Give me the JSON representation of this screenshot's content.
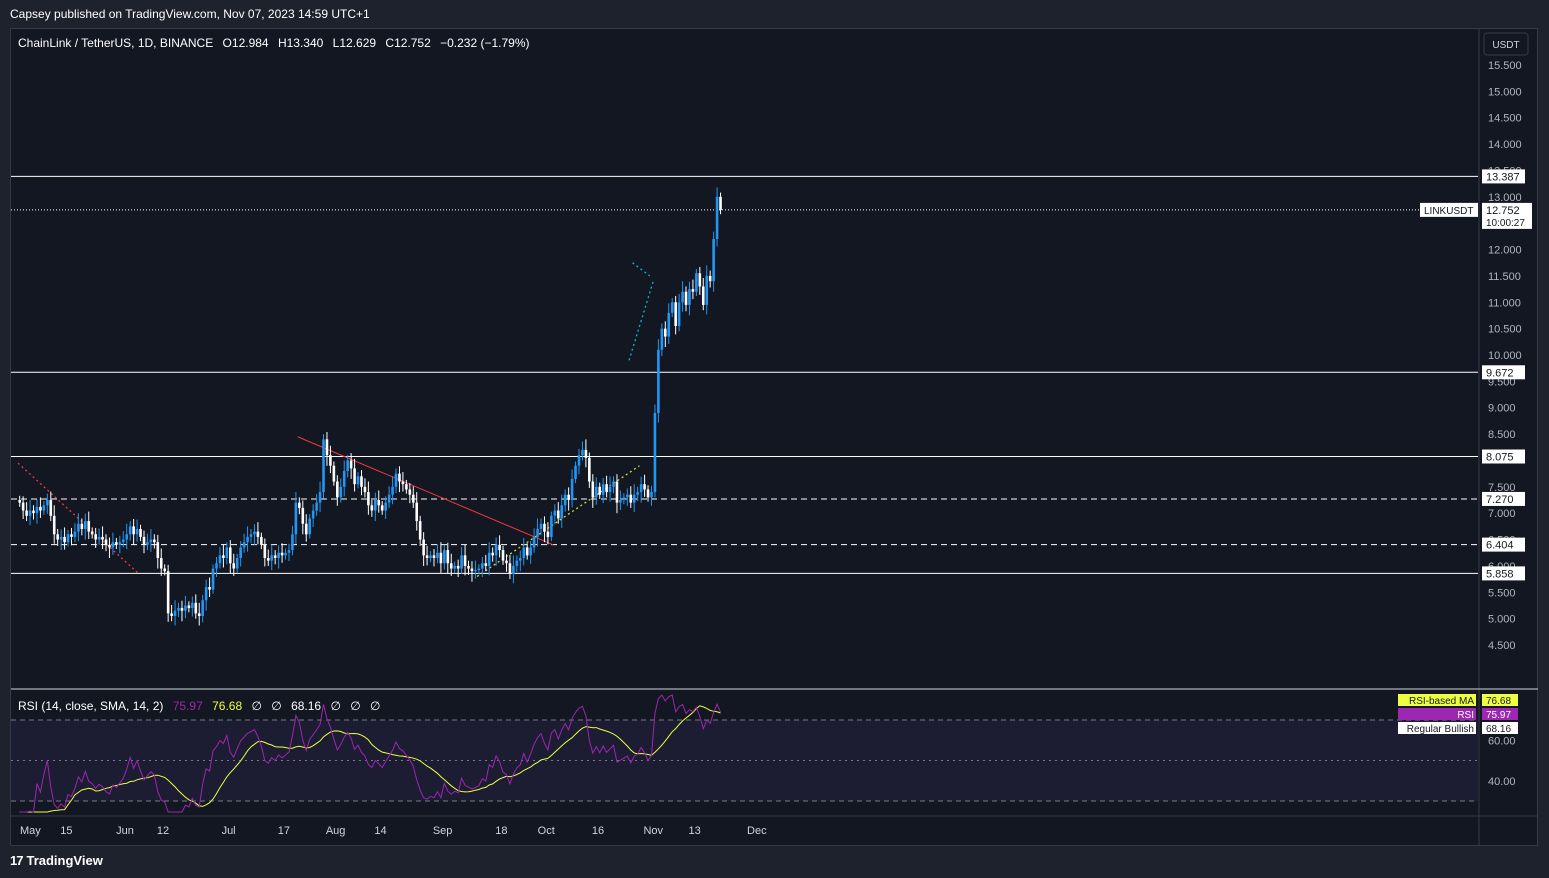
{
  "header": {
    "publisher": "Capsey published on TradingView.com, Nov 07, 2023 14:59 UTC+1"
  },
  "footer": {
    "brand": "TradingView",
    "logo_icon": "tradingview-logo-icon"
  },
  "legend": {
    "symbol": "ChainLink / TetherUS, 1D, BINANCE",
    "open_label": "O",
    "open": "12.984",
    "high_label": "H",
    "high": "13.340",
    "low_label": "L",
    "low": "12.629",
    "close_label": "C",
    "close": "12.752",
    "change": "−0.232 (−1.79%)"
  },
  "rsi_legend": {
    "title": "RSI (14, close, SMA, 14, 2)",
    "rsi_value": "75.97",
    "ma_value": "76.68",
    "null1": "∅",
    "null2": "∅",
    "bullish_value": "68.16",
    "null3": "∅",
    "null4": "∅",
    "null5": "∅"
  },
  "price_scale": {
    "currency": "USDT",
    "ticks": [
      "15.500",
      "15.000",
      "14.500",
      "14.000",
      "13.500",
      "13.000",
      "12.000",
      "11.500",
      "11.000",
      "10.500",
      "10.000",
      "9.500",
      "9.000",
      "8.500",
      "7.500",
      "7.000",
      "6.500",
      "6.000",
      "5.500",
      "5.000",
      "4.500"
    ],
    "current_price_symbol": "LINKUSDT",
    "current_price": "12.752",
    "countdown": "10:00:27"
  },
  "rsi_scale": {
    "ticks": [
      "60.00",
      "40.00"
    ],
    "labels": [
      {
        "name": "RSI-based MA",
        "value": "76.68",
        "color": "#eeff41"
      },
      {
        "name": "RSI",
        "value": "75.97",
        "color": "#9c27b0"
      },
      {
        "name": "Regular Bullish",
        "value": "68.16",
        "color": "#ffffff"
      }
    ]
  },
  "time_axis": {
    "ticks": [
      "May",
      "15",
      "Jun",
      "12",
      "Jul",
      "17",
      "Aug",
      "14",
      "Sep",
      "18",
      "Oct",
      "16",
      "Nov",
      "13",
      "Dec"
    ]
  },
  "colors": {
    "up": "#2196f3",
    "down": "#ffffff",
    "rsi": "#9c27b0",
    "rsi_ma": "#eeff41",
    "trend_red": "#f23645",
    "trend_yellow": "#cddc39",
    "trend_cyan": "#00bcd4"
  },
  "chart_data": {
    "type": "candlestick",
    "symbol": "LINKUSDT",
    "interval": "1D",
    "ylim": [
      4.2,
      15.9
    ],
    "x_range": [
      "2023-05-01",
      "2023-12-07"
    ],
    "horizontal_levels": [
      {
        "value": 13.387,
        "style": "solid"
      },
      {
        "value": 9.672,
        "style": "solid"
      },
      {
        "value": 8.075,
        "style": "solid"
      },
      {
        "value": 7.27,
        "style": "dashed"
      },
      {
        "value": 6.404,
        "style": "dashed"
      },
      {
        "value": 5.858,
        "style": "solid"
      }
    ],
    "trend_lines": [
      {
        "color": "red",
        "style": "solid",
        "from": [
          "2023-07-21",
          8.45
        ],
        "to": [
          "2023-10-03",
          6.4
        ]
      },
      {
        "color": "red",
        "style": "dotted",
        "from": [
          "2023-05-01",
          7.95
        ],
        "to": [
          "2023-06-05",
          5.85
        ]
      },
      {
        "color": "yellow",
        "style": "dotted",
        "from": [
          "2023-09-11",
          5.8
        ],
        "to": [
          "2023-10-28",
          7.9
        ]
      },
      {
        "color": "cyan",
        "style": "dotted",
        "from": [
          "2023-10-25",
          9.9
        ],
        "to": [
          "2023-11-01",
          11.4
        ]
      },
      {
        "color": "cyan",
        "style": "dotted",
        "from": [
          "2023-10-26",
          11.75
        ],
        "to": [
          "2023-10-31",
          11.5
        ]
      }
    ],
    "closes": [
      7.2,
      7.05,
      6.95,
      7.05,
      7.0,
      7.12,
      7.05,
      7.15,
      7.25,
      6.95,
      6.6,
      6.5,
      6.55,
      6.45,
      6.6,
      6.55,
      6.65,
      6.8,
      6.7,
      6.85,
      6.65,
      6.6,
      6.5,
      6.55,
      6.5,
      6.4,
      6.35,
      6.45,
      6.4,
      6.45,
      6.5,
      6.6,
      6.75,
      6.6,
      6.7,
      6.55,
      6.4,
      6.45,
      6.5,
      6.45,
      6.15,
      5.95,
      5.9,
      5.1,
      5.05,
      5.15,
      5.2,
      5.15,
      5.25,
      5.2,
      5.3,
      5.1,
      5.05,
      5.35,
      5.6,
      5.55,
      5.95,
      6.05,
      6.2,
      6.15,
      6.35,
      6.05,
      5.95,
      6.15,
      6.35,
      6.45,
      6.55,
      6.6,
      6.65,
      6.55,
      6.4,
      6.15,
      6.1,
      6.2,
      6.15,
      6.25,
      6.2,
      6.25,
      6.3,
      6.6,
      7.2,
      7.1,
      6.8,
      6.6,
      6.9,
      7.05,
      7.2,
      7.4,
      8.4,
      8.1,
      7.9,
      7.6,
      7.3,
      7.5,
      7.8,
      8.0,
      7.85,
      7.55,
      7.7,
      7.5,
      7.4,
      7.15,
      7.05,
      7.25,
      7.15,
      7.05,
      7.2,
      7.35,
      7.5,
      7.75,
      7.6,
      7.55,
      7.45,
      7.35,
      7.2,
      6.85,
      6.5,
      6.2,
      6.15,
      6.2,
      6.15,
      6.25,
      6.05,
      6.3,
      6.05,
      5.95,
      6.0,
      5.95,
      6.2,
      6.0,
      5.95,
      5.9,
      5.92,
      5.95,
      6.05,
      6.0,
      6.25,
      6.2,
      6.4,
      6.3,
      6.1,
      6.05,
      5.85,
      6.0,
      6.1,
      6.15,
      6.35,
      6.2,
      6.35,
      6.55,
      6.7,
      6.8,
      6.65,
      6.55,
      6.95,
      7.05,
      6.9,
      7.15,
      7.35,
      7.25,
      7.65,
      7.9,
      8.1,
      8.2,
      8.05,
      7.6,
      7.3,
      7.5,
      7.35,
      7.55,
      7.4,
      7.5,
      7.6,
      7.2,
      7.25,
      7.3,
      7.35,
      7.2,
      7.35,
      7.4,
      7.55,
      7.45,
      7.3,
      7.4,
      8.9,
      10.1,
      10.5,
      10.35,
      10.8,
      11.0,
      10.55,
      11.0,
      11.2,
      10.95,
      11.25,
      11.2,
      11.55,
      11.3,
      10.95,
      11.5,
      11.4,
      12.2,
      13.0,
      12.75
    ]
  }
}
